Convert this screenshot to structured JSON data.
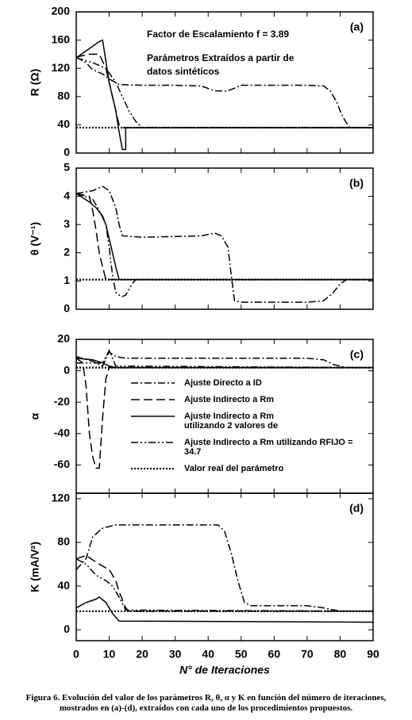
{
  "chart_data": [
    {
      "type": "line",
      "panel_label": "(a)",
      "ylabel": "R (Ω)",
      "xlim": [
        0,
        90
      ],
      "xticks": [
        0,
        10,
        20,
        30,
        40,
        50,
        60,
        70,
        80,
        90
      ],
      "ylim": [
        0,
        200
      ],
      "yticks": [
        0,
        40,
        80,
        120,
        160,
        200
      ],
      "annotations": [
        "Factor de Escalamiento f = 3.89",
        "Parámetros Extraídos a partir de\ndatos sintéticos"
      ],
      "series": [
        {
          "line_style": "dashdot",
          "color": "#000000",
          "x": [
            0,
            3,
            5,
            8,
            10,
            13,
            20,
            30,
            38,
            42,
            46,
            50,
            60,
            70,
            75,
            77,
            78,
            79,
            80,
            81,
            82,
            83,
            90
          ],
          "values": [
            136,
            128,
            118,
            112,
            105,
            97,
            96,
            96,
            95,
            88,
            88,
            96,
            96,
            96,
            95,
            88,
            80,
            72,
            60,
            50,
            42,
            36,
            36
          ]
        },
        {
          "line_style": "dash",
          "color": "#000000",
          "x": [
            0,
            4,
            7,
            9,
            10,
            11,
            12,
            13,
            14,
            90
          ],
          "values": [
            136,
            140,
            140,
            120,
            100,
            80,
            60,
            40,
            36,
            36
          ]
        },
        {
          "line_style": "solid",
          "color": "#000000",
          "x": [
            0,
            4,
            7,
            8,
            9,
            10,
            11,
            12,
            13,
            14,
            15,
            15,
            90
          ],
          "values": [
            135,
            148,
            158,
            160,
            130,
            100,
            80,
            60,
            30,
            5,
            5,
            36,
            36
          ]
        },
        {
          "line_style": "dashdotdot",
          "color": "#000000",
          "x": [
            0,
            5,
            9,
            12,
            14,
            16,
            18,
            20,
            90
          ],
          "values": [
            135,
            128,
            120,
            100,
            80,
            60,
            45,
            36,
            36
          ]
        },
        {
          "line_style": "dot",
          "color": "#000000",
          "x": [
            0,
            90
          ],
          "values": [
            36,
            36
          ]
        }
      ]
    },
    {
      "type": "line",
      "panel_label": "(b)",
      "ylabel": "θ (V⁻¹)",
      "xlim": [
        0,
        90
      ],
      "xticks": [
        0,
        10,
        20,
        30,
        40,
        50,
        60,
        70,
        80,
        90
      ],
      "ylim": [
        0,
        5
      ],
      "yticks": [
        0,
        1,
        2,
        3,
        4,
        5
      ],
      "series": [
        {
          "line_style": "dashdot",
          "color": "#000000",
          "x": [
            0,
            5,
            8,
            10,
            12,
            13,
            14,
            20,
            38,
            42,
            44,
            46,
            47,
            48,
            50,
            70,
            75,
            78,
            80,
            82,
            90
          ],
          "values": [
            4.1,
            4.2,
            4.35,
            4.2,
            3.6,
            3,
            2.6,
            2.55,
            2.6,
            2.7,
            2.6,
            2.2,
            1.2,
            0.3,
            0.25,
            0.25,
            0.3,
            0.6,
            0.9,
            1.05,
            1.05
          ]
        },
        {
          "line_style": "dash",
          "color": "#000000",
          "x": [
            0,
            4,
            5,
            6,
            7,
            8,
            9,
            90
          ],
          "values": [
            4.1,
            4.0,
            3.5,
            2.8,
            2.0,
            1.5,
            1.05,
            1.05
          ]
        },
        {
          "line_style": "solid",
          "color": "#000000",
          "x": [
            0,
            4,
            6,
            8,
            9,
            10,
            11,
            12,
            13,
            90
          ],
          "values": [
            4.1,
            3.8,
            3.6,
            3.3,
            3.0,
            2.5,
            2.0,
            1.5,
            1.05,
            1.05
          ]
        },
        {
          "line_style": "dashdotdot",
          "color": "#000000",
          "x": [
            0,
            5,
            7,
            9,
            10,
            11,
            12,
            13,
            14,
            15,
            16,
            17,
            18,
            90
          ],
          "values": [
            4.1,
            3.9,
            3.5,
            3,
            2.2,
            1.2,
            0.6,
            0.5,
            0.45,
            0.5,
            0.7,
            0.9,
            1.05,
            1.05
          ]
        },
        {
          "line_style": "dot",
          "color": "#000000",
          "x": [
            0,
            90
          ],
          "values": [
            1.05,
            1.05
          ]
        }
      ]
    },
    {
      "type": "line",
      "panel_label": "(c)",
      "ylabel": "α",
      "xlim": [
        0,
        90
      ],
      "xticks": [
        0,
        10,
        20,
        30,
        40,
        50,
        60,
        70,
        80,
        90
      ],
      "ylim": [
        -78,
        20
      ],
      "yticks": [
        -60,
        -40,
        -20,
        0,
        20
      ],
      "series": [
        {
          "name": "Ajuste Directo a ID",
          "line_style": "dashdot",
          "color": "#000000",
          "x": [
            0,
            5,
            8,
            10,
            12,
            15,
            70,
            75,
            78,
            82,
            90
          ],
          "values": [
            9,
            6,
            3,
            12,
            9,
            8,
            8,
            7,
            4,
            2,
            2
          ]
        },
        {
          "name": "Ajuste Indirecto a Rm",
          "line_style": "dash",
          "color": "#000000",
          "x": [
            0,
            2,
            3,
            4,
            5,
            6,
            7,
            8,
            9,
            10,
            90
          ],
          "values": [
            8,
            5,
            -10,
            -40,
            -55,
            -62,
            -62,
            -30,
            -5,
            2,
            2
          ]
        },
        {
          "name": "Ajuste Indirecto a Rm\nutilizando 2 valores de",
          "line_style": "solid",
          "color": "#000000",
          "x": [
            0,
            5,
            8,
            10,
            12,
            90
          ],
          "values": [
            8,
            7,
            5,
            3,
            2,
            2
          ]
        },
        {
          "name": "Ajuste Indirecto a Rm utilizando RFIJO =\n34.7",
          "line_style": "dashdotdot",
          "color": "#000000",
          "x": [
            0,
            8,
            10,
            11,
            12,
            90
          ],
          "values": [
            5,
            5,
            13,
            8,
            3,
            2
          ]
        },
        {
          "name": "Valor real del parámetro",
          "line_style": "dot",
          "color": "#000000",
          "x": [
            0,
            90
          ],
          "values": [
            2,
            2
          ]
        }
      ]
    },
    {
      "type": "line",
      "panel_label": "(d)",
      "ylabel": "K (mA/V²)",
      "xlabel": "N° de Iteraciones",
      "xlim": [
        0,
        90
      ],
      "xticks": [
        0,
        10,
        20,
        30,
        40,
        50,
        60,
        70,
        80,
        90
      ],
      "ylim": [
        -10,
        125
      ],
      "yticks": [
        0,
        40,
        80,
        120
      ],
      "series": [
        {
          "line_style": "dashdot",
          "color": "#000000",
          "x": [
            0,
            3,
            5,
            8,
            12,
            43,
            45,
            47,
            49,
            51,
            53,
            70,
            75,
            80,
            90
          ],
          "values": [
            55,
            65,
            85,
            93,
            96,
            96,
            90,
            70,
            45,
            25,
            22,
            22,
            20,
            17,
            17
          ]
        },
        {
          "line_style": "dash",
          "color": "#000000",
          "x": [
            0,
            3,
            7,
            10,
            12,
            13,
            15,
            16,
            90
          ],
          "values": [
            65,
            68,
            60,
            55,
            45,
            35,
            20,
            17,
            17
          ]
        },
        {
          "line_style": "solid",
          "color": "#000000",
          "x": [
            0,
            3,
            6,
            7,
            9,
            11,
            13,
            90
          ],
          "values": [
            20,
            25,
            28,
            30,
            25,
            15,
            8,
            7
          ]
        },
        {
          "line_style": "dashdotdot",
          "color": "#000000",
          "x": [
            0,
            3,
            6,
            9,
            11,
            13,
            15,
            90
          ],
          "values": [
            65,
            60,
            50,
            45,
            40,
            30,
            18,
            17
          ]
        },
        {
          "line_style": "dot",
          "color": "#000000",
          "x": [
            0,
            90
          ],
          "values": [
            17,
            17
          ]
        }
      ]
    }
  ],
  "caption": [
    "Figura 6.  Evolución del valor de los parámetros R, θ, α y K en función del número de iteraciones,",
    "mostrados en (a)-(d), extraídos con  cada uno de los procedimientos propuestos."
  ]
}
